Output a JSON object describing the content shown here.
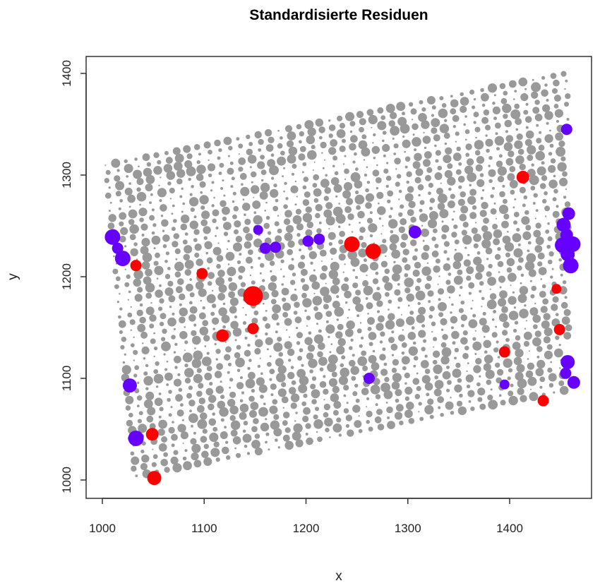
{
  "chart_data": {
    "type": "scatter",
    "title": "Standardisierte Residuen",
    "xlabel": "x",
    "ylabel": "y",
    "xlim": [
      985,
      1480
    ],
    "ylim": [
      982,
      1418
    ],
    "xticks": [
      "1000",
      "1100",
      "1200",
      "1300",
      "1400"
    ],
    "yticks": [
      "1000",
      "1100",
      "1200",
      "1300",
      "1400"
    ],
    "grid": false,
    "colors": {
      "neutral": "#999999",
      "negative": "#6600FF",
      "positive": "#FF0000"
    },
    "gray_grid": {
      "x_start_top": 1003,
      "x_start_bottom": 1032,
      "x_end": 1458,
      "x_step": 10,
      "slope": 0.2,
      "v_top": 1309,
      "v_bottom": 992,
      "v_step": 7.6,
      "gaps_v": [
        1265,
        1115
      ]
    },
    "highlighted": [
      {
        "x": 1010,
        "y": 1239,
        "size": 11,
        "class": "negative"
      },
      {
        "x": 1015,
        "y": 1228,
        "size": 8,
        "class": "negative"
      },
      {
        "x": 1020,
        "y": 1218,
        "size": 11,
        "class": "negative"
      },
      {
        "x": 1153,
        "y": 1246,
        "size": 7,
        "class": "negative"
      },
      {
        "x": 1160,
        "y": 1228,
        "size": 8,
        "class": "negative"
      },
      {
        "x": 1170,
        "y": 1229,
        "size": 8,
        "class": "negative"
      },
      {
        "x": 1202,
        "y": 1235,
        "size": 8,
        "class": "negative"
      },
      {
        "x": 1213,
        "y": 1237,
        "size": 8,
        "class": "negative"
      },
      {
        "x": 1307,
        "y": 1244,
        "size": 9,
        "class": "negative"
      },
      {
        "x": 1456,
        "y": 1345,
        "size": 8,
        "class": "negative"
      },
      {
        "x": 1458,
        "y": 1262,
        "size": 9,
        "class": "negative"
      },
      {
        "x": 1453,
        "y": 1251,
        "size": 10,
        "class": "negative"
      },
      {
        "x": 1456,
        "y": 1241,
        "size": 9,
        "class": "negative"
      },
      {
        "x": 1452,
        "y": 1231,
        "size": 11,
        "class": "negative"
      },
      {
        "x": 1462,
        "y": 1232,
        "size": 11,
        "class": "negative"
      },
      {
        "x": 1457,
        "y": 1222,
        "size": 10,
        "class": "negative"
      },
      {
        "x": 1460,
        "y": 1211,
        "size": 11,
        "class": "negative"
      },
      {
        "x": 1027,
        "y": 1093,
        "size": 10,
        "class": "negative"
      },
      {
        "x": 1262,
        "y": 1100,
        "size": 8,
        "class": "negative"
      },
      {
        "x": 1395,
        "y": 1094,
        "size": 7,
        "class": "negative"
      },
      {
        "x": 1457,
        "y": 1116,
        "size": 10,
        "class": "negative"
      },
      {
        "x": 1455,
        "y": 1105,
        "size": 8,
        "class": "negative"
      },
      {
        "x": 1463,
        "y": 1096,
        "size": 9,
        "class": "negative"
      },
      {
        "x": 1033,
        "y": 1041,
        "size": 11,
        "class": "negative"
      },
      {
        "x": 1033,
        "y": 1211,
        "size": 8,
        "class": "positive"
      },
      {
        "x": 1098,
        "y": 1203,
        "size": 8,
        "class": "positive"
      },
      {
        "x": 1148,
        "y": 1181,
        "size": 14,
        "class": "positive"
      },
      {
        "x": 1118,
        "y": 1142,
        "size": 9,
        "class": "positive"
      },
      {
        "x": 1148,
        "y": 1149,
        "size": 8,
        "class": "positive"
      },
      {
        "x": 1245,
        "y": 1232,
        "size": 11,
        "class": "positive"
      },
      {
        "x": 1266,
        "y": 1225,
        "size": 11,
        "class": "positive"
      },
      {
        "x": 1413,
        "y": 1298,
        "size": 9,
        "class": "positive"
      },
      {
        "x": 1446,
        "y": 1188,
        "size": 7,
        "class": "positive"
      },
      {
        "x": 1449,
        "y": 1148,
        "size": 8,
        "class": "positive"
      },
      {
        "x": 1395,
        "y": 1126,
        "size": 8,
        "class": "positive"
      },
      {
        "x": 1433,
        "y": 1078,
        "size": 8,
        "class": "positive"
      },
      {
        "x": 1049,
        "y": 1045,
        "size": 9,
        "class": "positive"
      },
      {
        "x": 1051,
        "y": 1002,
        "size": 10,
        "class": "positive"
      }
    ]
  }
}
